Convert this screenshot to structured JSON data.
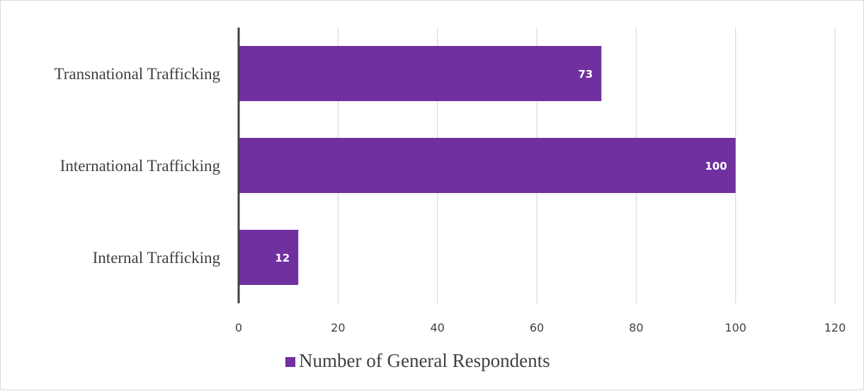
{
  "chart_data": {
    "type": "bar",
    "orientation": "horizontal",
    "categories": [
      "Transnational Trafficking",
      "International Trafficking",
      "Internal Trafficking"
    ],
    "series": [
      {
        "name": "Number of General Respondents",
        "values": [
          73,
          100,
          12
        ],
        "color": "#7030a0"
      }
    ],
    "xticks": [
      "0",
      "20",
      "40",
      "60",
      "80",
      "100",
      "120"
    ],
    "xlim": [
      0,
      120
    ],
    "grid": true,
    "legend_position": "bottom"
  }
}
